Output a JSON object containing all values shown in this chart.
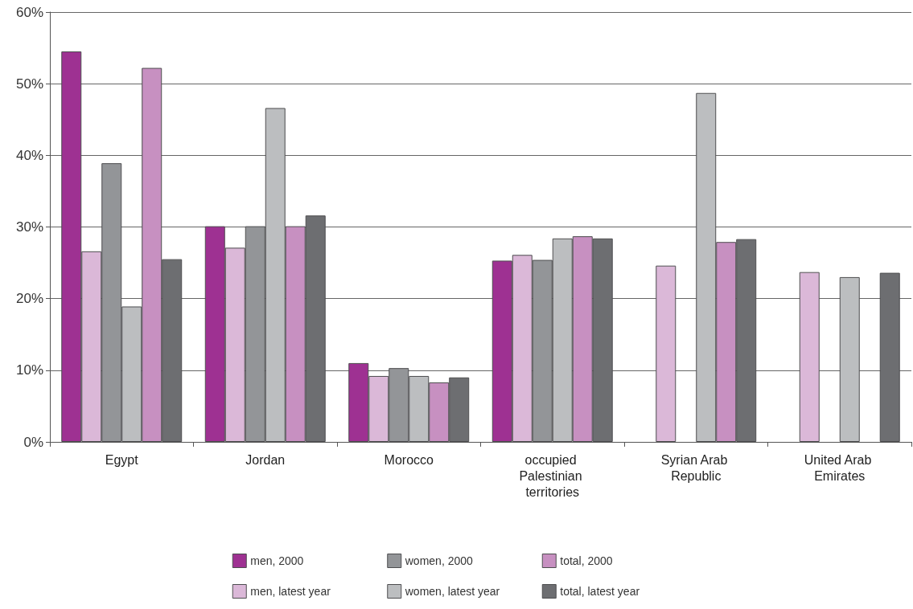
{
  "chart_data": {
    "type": "bar",
    "categories": [
      "Egypt",
      "Jordan",
      "Morocco",
      "occupied Palestinian territories",
      "Syrian Arab Republic",
      "United Arab Emirates"
    ],
    "series": [
      {
        "name": "men, 2000",
        "color": "#9e3192",
        "values": [
          54.5,
          30.1,
          11.0,
          25.3,
          null,
          null
        ]
      },
      {
        "name": "men, latest year",
        "color": "#dbb8d8",
        "values": [
          26.6,
          27.1,
          9.2,
          26.1,
          24.6,
          23.7
        ]
      },
      {
        "name": "women, 2000",
        "color": "#939598",
        "values": [
          38.9,
          30.1,
          10.3,
          25.4,
          null,
          null
        ]
      },
      {
        "name": "women, latest year",
        "color": "#bcbec0",
        "values": [
          18.9,
          46.6,
          9.2,
          28.4,
          48.7,
          23.0
        ]
      },
      {
        "name": "total, 2000",
        "color": "#c790c1",
        "values": [
          52.2,
          30.1,
          8.3,
          28.7,
          27.9,
          null
        ]
      },
      {
        "name": "total, latest year",
        "color": "#6d6e71",
        "values": [
          25.5,
          31.6,
          9.0,
          28.4,
          28.3,
          23.6
        ]
      }
    ],
    "ylim": [
      0,
      60
    ],
    "yticks": [
      {
        "value": 0,
        "label": "0%"
      },
      {
        "value": 10,
        "label": "10%"
      },
      {
        "value": 20,
        "label": "20%"
      },
      {
        "value": 30,
        "label": "30%"
      },
      {
        "value": 40,
        "label": "40%"
      },
      {
        "value": 50,
        "label": "50%"
      },
      {
        "value": 60,
        "label": "60%"
      }
    ],
    "grid": "y",
    "legend": "bottom"
  }
}
